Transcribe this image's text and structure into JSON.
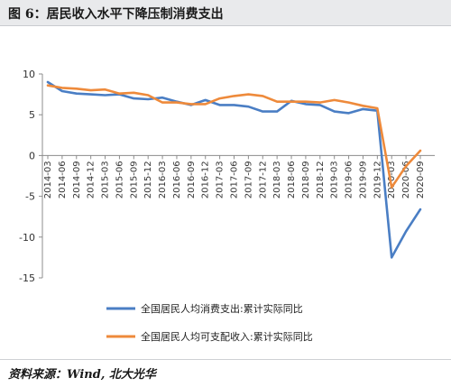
{
  "title": "图 6：居民收入水平下降压制消费支出",
  "source": "资料来源：Wind, 北大光华",
  "colors": {
    "consumption": "#4a7ec4",
    "income": "#ee8a3b"
  },
  "chart_data": {
    "type": "line",
    "title": "",
    "xlabel": "",
    "ylabel": "",
    "ylim": [
      -15,
      10
    ],
    "yticks": [
      10,
      5,
      0,
      -5,
      -10,
      -15
    ],
    "grid": false,
    "legend_position": "bottom",
    "x": [
      "2014-03",
      "2014-06",
      "2014-09",
      "2014-12",
      "2015-03",
      "2015-06",
      "2015-09",
      "2015-12",
      "2016-03",
      "2016-06",
      "2016-09",
      "2016-12",
      "2017-03",
      "2017-06",
      "2017-09",
      "2017-12",
      "2018-03",
      "2018-06",
      "2018-09",
      "2018-12",
      "2019-03",
      "2019-06",
      "2019-09",
      "2019-12",
      "2020-03",
      "2020-06",
      "2020-09"
    ],
    "series": [
      {
        "name": "全国居民人均消费支出:累计实际同比",
        "key": "consumption",
        "values": [
          9.0,
          7.9,
          7.6,
          7.5,
          7.4,
          7.5,
          7.0,
          6.9,
          7.1,
          6.6,
          6.2,
          6.8,
          6.2,
          6.2,
          6.0,
          5.4,
          5.4,
          6.7,
          6.3,
          6.2,
          5.4,
          5.2,
          5.7,
          5.5,
          -12.5,
          -9.3,
          -6.6
        ]
      },
      {
        "name": "全国居民人均可支配收入:累计实际同比",
        "key": "income",
        "values": [
          8.6,
          8.3,
          8.2,
          8.0,
          8.1,
          7.6,
          7.7,
          7.4,
          6.5,
          6.5,
          6.3,
          6.3,
          7.0,
          7.3,
          7.5,
          7.3,
          6.6,
          6.6,
          6.6,
          6.5,
          6.8,
          6.5,
          6.1,
          5.8,
          -3.9,
          -1.3,
          0.6
        ]
      }
    ]
  }
}
